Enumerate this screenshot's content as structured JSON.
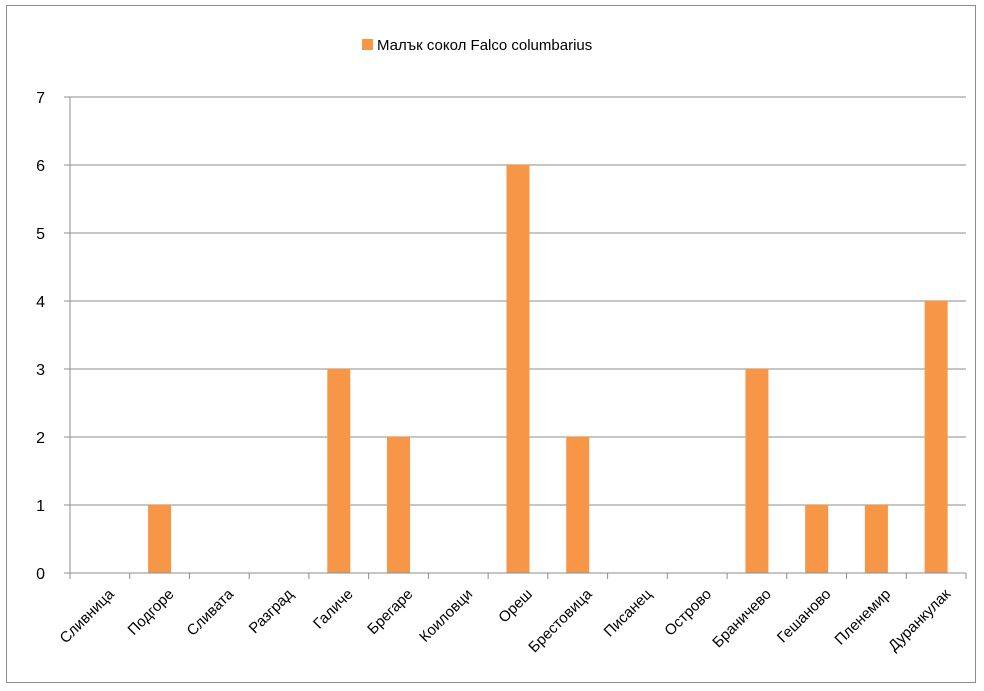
{
  "chart_data": {
    "type": "bar",
    "categories": [
      "Сливница",
      "Подгоре",
      "Сливата",
      "Разград",
      "Галиче",
      "Брегаре",
      "Коиловци",
      "Ореш",
      "Брестовица",
      "Писанец",
      "Острово",
      "Браничево",
      "Гешаново",
      "Пленемир",
      "Дуранкулак"
    ],
    "series": [
      {
        "name": "Малък сокол Falco columbarius",
        "values": [
          0,
          1,
          0,
          0,
          3,
          2,
          0,
          6,
          2,
          0,
          0,
          3,
          1,
          1,
          4
        ]
      }
    ],
    "ylim": [
      0,
      7
    ],
    "yticks": [
      "0",
      "1",
      "2",
      "3",
      "4",
      "5",
      "6",
      "7"
    ],
    "grid": true,
    "legend_position": "top-center",
    "colors": {
      "bar": "#f79646",
      "grid": "#8c8c8c",
      "axis": "#8c8c8c"
    }
  }
}
